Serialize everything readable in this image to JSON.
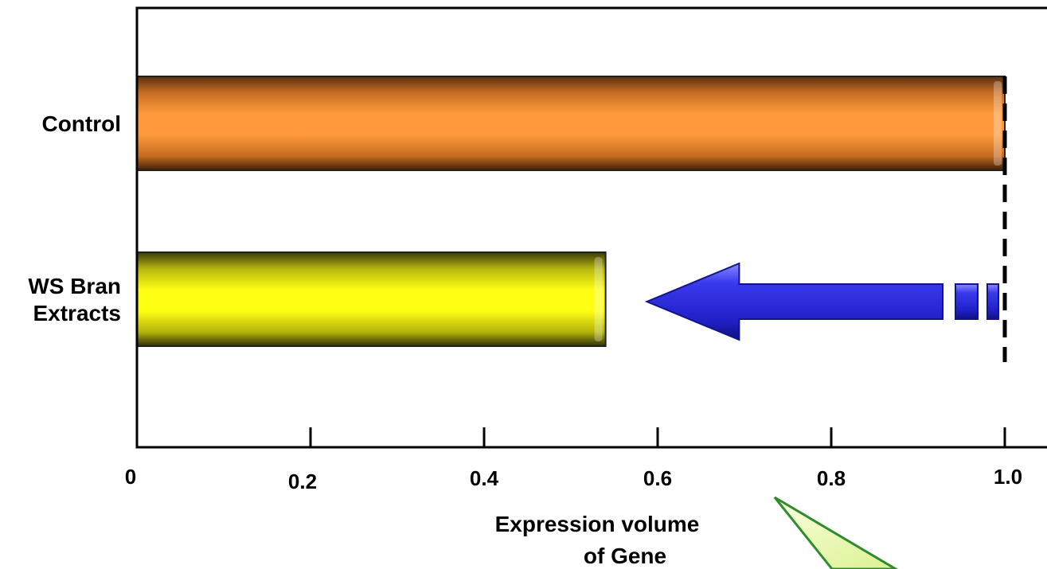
{
  "chart_data": {
    "type": "bar",
    "orientation": "horizontal",
    "categories": [
      "Control",
      "WS Bran\nExtracts"
    ],
    "values": [
      1.0,
      0.54
    ],
    "bar_colors": [
      "#ff9a3c",
      "#ffff14"
    ],
    "xlim": [
      0,
      1.0
    ],
    "xticks": [
      0,
      0.2,
      0.4,
      0.6,
      0.8,
      1.0
    ],
    "xtick_labels": [
      "0",
      "0.2",
      "0.4",
      "0.6",
      "0.8",
      "1.0"
    ],
    "xlabel": "Expression volume\nof Gene",
    "ylabel": "",
    "title": "",
    "grid": false,
    "legend": false,
    "reference_line": {
      "x": 1.0,
      "style": "dashed",
      "color": "#000000"
    },
    "arrow": {
      "from_x": 1.0,
      "to_x": 0.56,
      "color": "#2b2bd6",
      "direction": "left"
    },
    "callout_color": "#e6f7a8"
  }
}
